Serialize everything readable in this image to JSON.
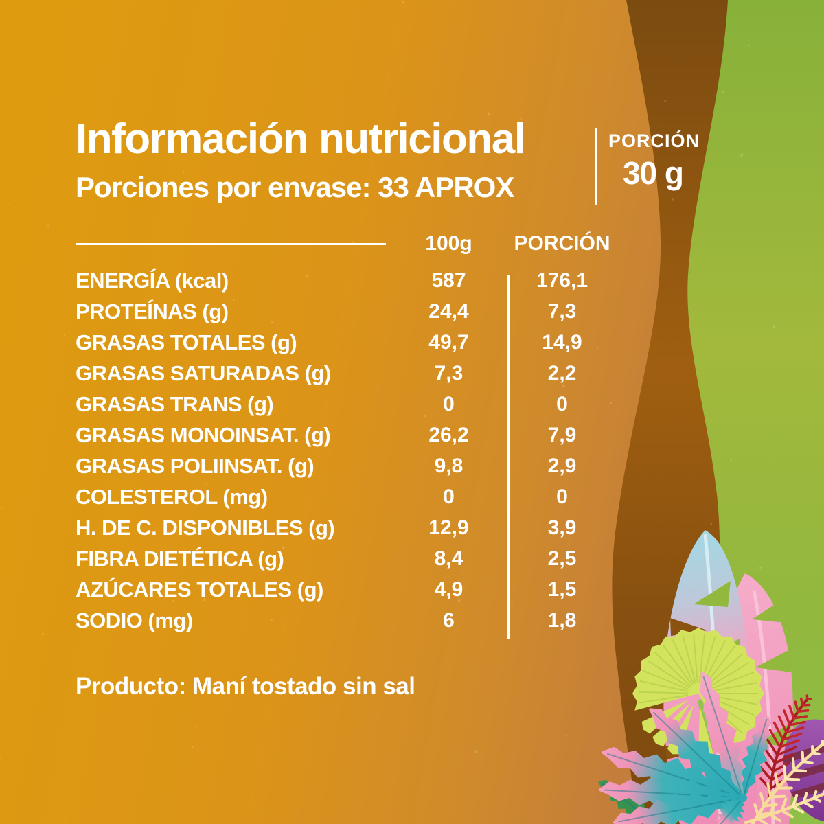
{
  "label": {
    "title": "Información nutricional",
    "servings": "Porciones por envase: 33 APROX",
    "portion_header": "PORCIÓN",
    "portion_size": "30 g",
    "columns": {
      "per100g": "100g",
      "portion": "PORCIÓN"
    },
    "rows": [
      {
        "label": "ENERGÍA (kcal)",
        "per100g": "587",
        "portion": "176,1"
      },
      {
        "label": "PROTEÍNAS (g)",
        "per100g": "24,4",
        "portion": "7,3"
      },
      {
        "label": "GRASAS TOTALES (g)",
        "per100g": "49,7",
        "portion": "14,9"
      },
      {
        "label": "GRASAS SATURADAS (g)",
        "per100g": "7,3",
        "portion": "2,2"
      },
      {
        "label": "GRASAS TRANS (g)",
        "per100g": "0",
        "portion": "0"
      },
      {
        "label": "GRASAS MONOINSAT. (g)",
        "per100g": "26,2",
        "portion": "7,9"
      },
      {
        "label": "GRASAS POLIINSAT. (g)",
        "per100g": "9,8",
        "portion": "2,9"
      },
      {
        "label": "COLESTEROL (mg)",
        "per100g": "0",
        "portion": "0"
      },
      {
        "label": "H. DE C. DISPONIBLES (g)",
        "per100g": "12,9",
        "portion": "3,9"
      },
      {
        "label": "FIBRA DIETÉTICA (g)",
        "per100g": "8,4",
        "portion": "2,5"
      },
      {
        "label": "AZÚCARES TOTALES (g)",
        "per100g": "4,9",
        "portion": "1,5"
      },
      {
        "label": "SODIO (mg)",
        "per100g": "6",
        "portion": "1,8"
      }
    ],
    "product": "Producto: Maní tostado sin sal"
  },
  "colors": {
    "text": "#ffffff",
    "gold": "#de9b10",
    "gold_mid": "#db9019",
    "tan": "#c07a40",
    "brown_dark": "#7b4b10",
    "brown_light": "#a05f10",
    "green_top": "#88b13a",
    "green_mid": "#a2b93c",
    "green_bottom": "#8fbf47",
    "leaf_chartreuse": "#d3e35e",
    "leaf_chartreuse_line": "#bdd350",
    "leaf_stem_green": "#93c153",
    "leaf_teal": "#2aacb8",
    "leaf_pink": "#f29cc0",
    "leaf_cyan": "#a6d6e2",
    "fern_red": "#c2262c",
    "fern_red_dark": "#a81e24",
    "leaf_purple": "#8a3f9e",
    "leaf_purple_stripe": "#7a2d49",
    "twig_yellow": "#f8dc9a",
    "leaf_dark_green": "#3f9553"
  }
}
